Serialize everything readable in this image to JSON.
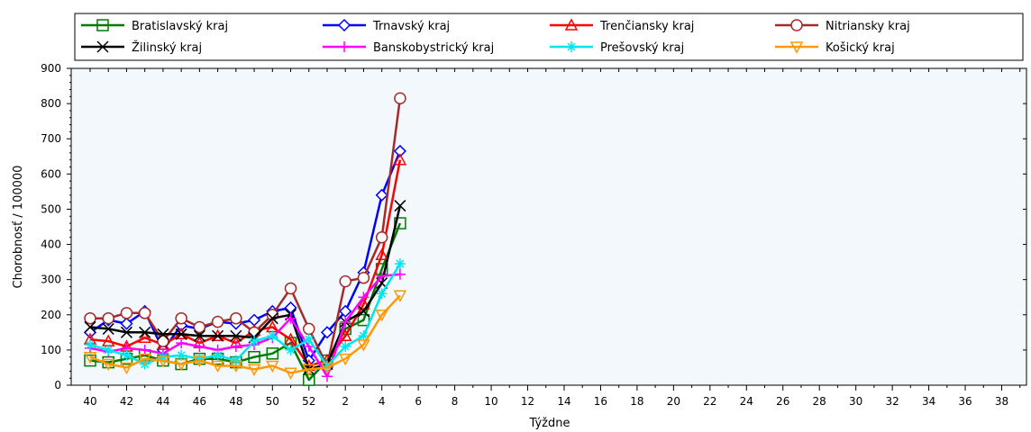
{
  "chart_data": {
    "type": "line",
    "xlabel": "Týždne",
    "ylabel": "Chorobnosť / 100000",
    "ylim": [
      0,
      900
    ],
    "yticks": [
      0,
      100,
      200,
      300,
      400,
      500,
      600,
      700,
      800,
      900
    ],
    "x_tick_labels": [
      "40",
      "42",
      "44",
      "46",
      "48",
      "50",
      "52",
      "2",
      "4",
      "6",
      "8",
      "10",
      "12",
      "14",
      "16",
      "18",
      "20",
      "22",
      "24",
      "26",
      "28",
      "30",
      "32",
      "34",
      "36",
      "38"
    ],
    "x_all_weeks": [
      "40",
      "41",
      "42",
      "43",
      "44",
      "45",
      "46",
      "47",
      "48",
      "49",
      "50",
      "51",
      "52",
      "1",
      "2",
      "3",
      "4",
      "5",
      "6",
      "7",
      "8",
      "9",
      "10",
      "11",
      "12",
      "13",
      "14",
      "15",
      "16",
      "17",
      "18",
      "19",
      "20",
      "21",
      "22",
      "23",
      "24",
      "25",
      "26",
      "27",
      "28",
      "29",
      "30",
      "31",
      "32",
      "33",
      "34",
      "35",
      "36",
      "37",
      "38",
      "39"
    ],
    "grid": false,
    "legend_position": "top",
    "series": [
      {
        "name": "Bratislavský kraj",
        "color": "#007a00",
        "marker": "square",
        "values": [
          70,
          65,
          75,
          85,
          70,
          60,
          75,
          75,
          65,
          80,
          90,
          120,
          15,
          70,
          160,
          185,
          330,
          460
        ]
      },
      {
        "name": "Trnavský kraj",
        "color": "#0000ff",
        "marker": "diamond",
        "values": [
          150,
          185,
          175,
          210,
          100,
          170,
          160,
          180,
          175,
          185,
          210,
          220,
          70,
          150,
          210,
          320,
          540,
          665
        ]
      },
      {
        "name": "Trenčiansky kraj",
        "color": "#ff0000",
        "marker": "triangle",
        "values": [
          130,
          125,
          110,
          135,
          115,
          145,
          120,
          140,
          120,
          155,
          165,
          130,
          55,
          70,
          140,
          230,
          370,
          640
        ]
      },
      {
        "name": "Nitriansky kraj",
        "color": "#a52a2a",
        "marker": "circle",
        "values": [
          190,
          190,
          205,
          205,
          125,
          190,
          165,
          180,
          190,
          150,
          200,
          275,
          160,
          55,
          295,
          305,
          420,
          815
        ]
      },
      {
        "name": "Žilinský kraj",
        "color": "#000000",
        "marker": "x",
        "values": [
          165,
          160,
          150,
          150,
          145,
          145,
          140,
          140,
          140,
          135,
          190,
          200,
          45,
          60,
          180,
          210,
          290,
          510
        ]
      },
      {
        "name": "Banskobystrický kraj",
        "color": "#ff00ff",
        "marker": "plus",
        "values": [
          105,
          95,
          105,
          100,
          90,
          120,
          110,
          100,
          110,
          115,
          135,
          190,
          110,
          25,
          180,
          250,
          310,
          315
        ]
      },
      {
        "name": "Prešovský kraj",
        "color": "#00e5ee",
        "marker": "asterisk",
        "values": [
          115,
          100,
          85,
          60,
          80,
          85,
          75,
          85,
          70,
          125,
          140,
          100,
          130,
          55,
          110,
          140,
          260,
          345
        ]
      },
      {
        "name": "Košický kraj",
        "color": "#ff9900",
        "marker": "down-triangle",
        "values": [
          80,
          60,
          50,
          75,
          70,
          60,
          70,
          55,
          55,
          45,
          55,
          35,
          45,
          50,
          75,
          115,
          200,
          255
        ]
      }
    ]
  }
}
